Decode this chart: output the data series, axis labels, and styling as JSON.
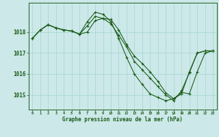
{
  "bg_color": "#cce8e8",
  "grid_color": "#aad8d8",
  "line_color": "#1a5c18",
  "title": "Graphe pression niveau de la mer (hPa)",
  "x_ticks": [
    0,
    1,
    2,
    3,
    4,
    5,
    6,
    7,
    8,
    9,
    10,
    11,
    12,
    13,
    14,
    15,
    16,
    17,
    18,
    19,
    20,
    21,
    22,
    23
  ],
  "ylim": [
    1014.3,
    1019.4
  ],
  "yticks": [
    1015,
    1016,
    1017,
    1018
  ],
  "series": [
    [
      1017.7,
      1018.1,
      1018.35,
      1018.2,
      1018.1,
      1018.05,
      1017.9,
      1018.3,
      1018.75,
      1018.65,
      1018.6,
      1018.1,
      1017.4,
      1016.85,
      1016.5,
      1016.1,
      1015.65,
      1015.1,
      1014.82,
      1015.05,
      1016.1,
      1017.0,
      1017.1,
      1017.1
    ],
    [
      1017.7,
      1018.1,
      1018.35,
      1018.2,
      1018.1,
      1018.05,
      1017.9,
      1018.0,
      1018.55,
      1018.65,
      1018.4,
      1017.85,
      1017.3,
      1016.6,
      1016.2,
      1015.8,
      1015.4,
      1015.0,
      1014.73,
      1015.2,
      1016.05,
      1017.0,
      1017.1,
      1017.1
    ],
    [
      1017.7,
      1018.1,
      1018.35,
      1018.2,
      1018.1,
      1018.05,
      1017.9,
      1018.5,
      1018.95,
      1018.85,
      1018.5,
      1017.7,
      1016.8,
      1016.0,
      1015.5,
      1015.05,
      1014.88,
      1014.72,
      1014.82,
      1015.12,
      1015.05,
      1016.1,
      1017.0,
      1017.1
    ]
  ]
}
